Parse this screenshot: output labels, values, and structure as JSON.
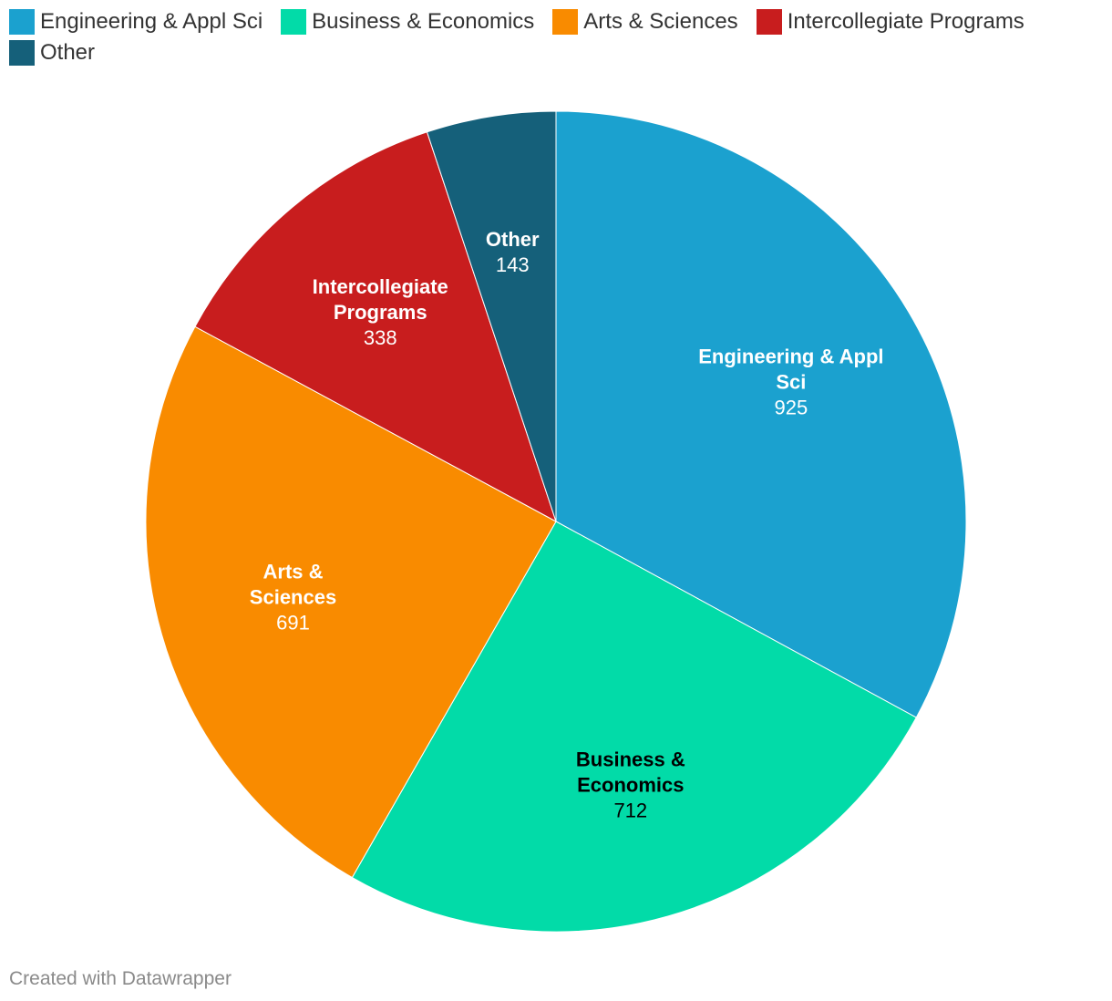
{
  "chart_data": {
    "type": "pie",
    "title": "",
    "categories": [
      "Engineering & Appl Sci",
      "Business & Economics",
      "Arts & Sciences",
      "Intercollegiate Programs",
      "Other"
    ],
    "values": [
      925,
      712,
      691,
      338,
      143
    ],
    "colors": [
      "#1ba1cf",
      "#02dba8",
      "#f98b00",
      "#c81d1e",
      "#15607a"
    ],
    "label_colors": [
      "#ffffff",
      "#000000",
      "#ffffff",
      "#ffffff",
      "#ffffff"
    ],
    "slice_labels": [
      [
        "Engineering & Appl",
        "Sci"
      ],
      [
        "Business &",
        "Economics"
      ],
      [
        "Arts &",
        "Sciences"
      ],
      [
        "Intercollegiate",
        "Programs"
      ],
      [
        "Other"
      ]
    ],
    "value_labels": [
      "925",
      "712",
      "691",
      "338",
      "143"
    ],
    "legend": {
      "placement": "top-left",
      "items": [
        {
          "label": "Engineering & Appl Sci",
          "color": "#1ba1cf"
        },
        {
          "label": "Business & Economics",
          "color": "#02dba8"
        },
        {
          "label": "Arts & Sciences",
          "color": "#f98b00"
        },
        {
          "label": "Intercollegiate Programs",
          "color": "#c81d1e"
        },
        {
          "label": "Other",
          "color": "#15607a"
        }
      ]
    }
  },
  "footer": {
    "credit": "Created with Datawrapper"
  }
}
